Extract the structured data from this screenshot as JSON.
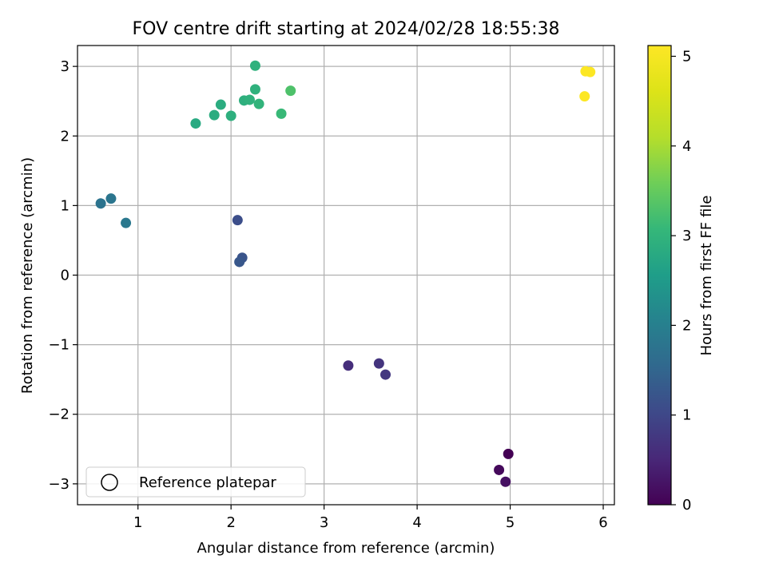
{
  "chart_data": {
    "type": "scatter",
    "title": "FOV centre drift starting at 2024/02/28 18:55:38",
    "xlabel": "Angular distance from reference (arcmin)",
    "ylabel": "Rotation from reference (arcmin)",
    "xlim": [
      0.35,
      6.12
    ],
    "ylim": [
      -3.3,
      3.3
    ],
    "xticks": [
      1,
      2,
      3,
      4,
      5,
      6
    ],
    "yticks": [
      -3,
      -2,
      -1,
      0,
      1,
      2,
      3
    ],
    "xtick_labels": [
      "1",
      "2",
      "3",
      "4",
      "5",
      "6"
    ],
    "ytick_labels": [
      "−3",
      "−2",
      "−1",
      "0",
      "1",
      "2",
      "3"
    ],
    "grid": true,
    "colormap": "viridis",
    "colorbar": {
      "label": "Hours from first FF file",
      "range": [
        0,
        5.12
      ],
      "ticks": [
        0,
        1,
        2,
        3,
        4,
        5
      ],
      "tick_labels": [
        "0",
        "1",
        "2",
        "3",
        "4",
        "5"
      ]
    },
    "legend": {
      "position": "lower-left",
      "entries": [
        {
          "label": "Reference platepar",
          "marker": "open-circle"
        }
      ]
    },
    "points": [
      {
        "x": 4.98,
        "y": -2.57,
        "hours": 0.0
      },
      {
        "x": 4.88,
        "y": -2.8,
        "hours": 0.1
      },
      {
        "x": 4.95,
        "y": -2.97,
        "hours": 0.2
      },
      {
        "x": 3.26,
        "y": -1.3,
        "hours": 0.6
      },
      {
        "x": 3.59,
        "y": -1.27,
        "hours": 0.7
      },
      {
        "x": 3.66,
        "y": -1.43,
        "hours": 0.75
      },
      {
        "x": 2.07,
        "y": 0.79,
        "hours": 1.1
      },
      {
        "x": 2.12,
        "y": 0.25,
        "hours": 1.2
      },
      {
        "x": 2.09,
        "y": 0.19,
        "hours": 1.25
      },
      {
        "x": 0.6,
        "y": 1.03,
        "hours": 1.75
      },
      {
        "x": 0.71,
        "y": 1.1,
        "hours": 1.8
      },
      {
        "x": 0.87,
        "y": 0.75,
        "hours": 1.85
      },
      {
        "x": 1.62,
        "y": 2.18,
        "hours": 2.8
      },
      {
        "x": 1.82,
        "y": 2.3,
        "hours": 2.85
      },
      {
        "x": 1.89,
        "y": 2.45,
        "hours": 2.85
      },
      {
        "x": 2.0,
        "y": 2.29,
        "hours": 2.9
      },
      {
        "x": 2.14,
        "y": 2.51,
        "hours": 2.9
      },
      {
        "x": 2.2,
        "y": 2.52,
        "hours": 2.95
      },
      {
        "x": 2.26,
        "y": 2.67,
        "hours": 2.95
      },
      {
        "x": 2.26,
        "y": 3.01,
        "hours": 2.95
      },
      {
        "x": 2.3,
        "y": 2.46,
        "hours": 3.0
      },
      {
        "x": 2.54,
        "y": 2.32,
        "hours": 3.1
      },
      {
        "x": 2.64,
        "y": 2.65,
        "hours": 3.3
      },
      {
        "x": 5.81,
        "y": 2.93,
        "hours": 5.1
      },
      {
        "x": 5.86,
        "y": 2.92,
        "hours": 5.1
      },
      {
        "x": 5.8,
        "y": 2.57,
        "hours": 5.1
      }
    ]
  }
}
